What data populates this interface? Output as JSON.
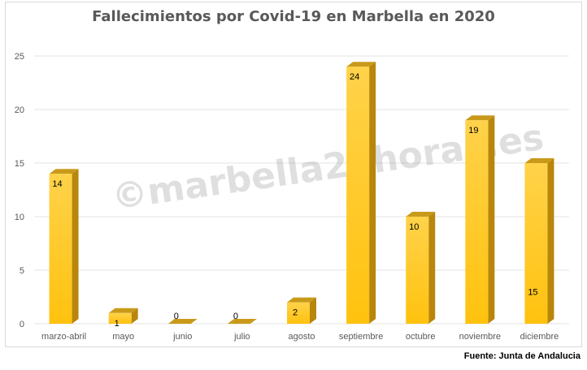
{
  "chart_data": {
    "type": "bar",
    "title": "Fallecimientos  por  Covid-19  en  Marbella  en  2020",
    "categories": [
      "marzo-abril",
      "mayo",
      "junio",
      "julio",
      "agosto",
      "septiembre",
      "octubre",
      "noviembre",
      "diciembre"
    ],
    "values": [
      14,
      1,
      0,
      0,
      2,
      24,
      10,
      19,
      15
    ],
    "ylim": [
      0,
      25
    ],
    "yticks": [
      0,
      5,
      10,
      15,
      20,
      25
    ],
    "grid": true,
    "legend": "none",
    "bar_color": "#FFC20E",
    "bar_side_color": "#B8860B",
    "bar_top_color": "#C99A1A"
  },
  "watermark": "©marbella24horas.es",
  "source": "Fuente:  Junta de Andalucia"
}
